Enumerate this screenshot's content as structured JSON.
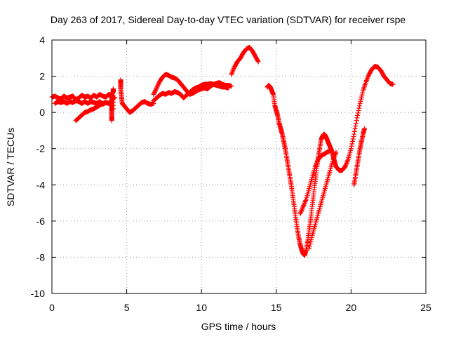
{
  "chart_data": {
    "type": "scatter",
    "title": "Day 263 of 2017, Sidereal Day-to-day VTEC variation (SDTVAR) for receiver rspe",
    "xlabel": "GPS time / hours",
    "ylabel": "SDTVAR / TECUs",
    "xlim": [
      0,
      25
    ],
    "ylim": [
      -10,
      4
    ],
    "xticks": [
      "0",
      "5",
      "10",
      "15",
      "20",
      "25"
    ],
    "yticks": [
      "4",
      "2",
      "0",
      "-2",
      "-4",
      "-6",
      "-8",
      "-10"
    ],
    "grid": true,
    "marker": "plus",
    "color": "#ff0000",
    "series": [
      {
        "x": [
          0.0,
          0.2,
          0.4,
          0.6,
          0.8,
          1.0,
          1.2,
          1.4,
          1.6,
          1.8,
          2.0,
          2.2,
          2.4,
          2.6,
          2.8,
          3.0,
          3.2,
          3.4,
          3.6,
          3.8,
          4.0,
          4.2
        ],
        "y": [
          0.85,
          0.9,
          0.8,
          0.75,
          0.9,
          0.8,
          0.85,
          0.9,
          0.7,
          0.8,
          0.95,
          0.85,
          0.9,
          0.8,
          0.95,
          0.85,
          1.0,
          0.9,
          0.85,
          1.0,
          0.9,
          0.8
        ]
      },
      {
        "x": [
          0.2,
          0.4,
          0.6,
          0.8,
          1.0,
          1.2,
          1.4,
          1.6,
          1.8,
          2.0,
          2.2,
          2.4,
          2.6,
          2.8,
          3.0,
          3.2,
          3.4,
          3.6,
          3.8,
          4.0
        ],
        "y": [
          0.5,
          0.6,
          0.55,
          0.6,
          0.5,
          0.6,
          0.55,
          0.65,
          0.6,
          0.5,
          0.6,
          0.5,
          0.6,
          0.55,
          0.5,
          0.6,
          0.45,
          0.55,
          0.5,
          0.55
        ]
      },
      {
        "x": [
          1.6,
          1.8,
          2.0,
          2.2,
          2.4,
          2.6,
          2.8,
          3.0,
          3.2,
          3.4,
          3.6,
          3.8
        ],
        "y": [
          -0.45,
          -0.3,
          -0.15,
          0.0,
          0.05,
          0.15,
          0.2,
          0.3,
          0.4,
          0.5,
          0.55,
          0.5
        ]
      },
      {
        "x": [
          4.0,
          4.0,
          4.0,
          4.0,
          4.0,
          4.0,
          4.0,
          4.1,
          4.1,
          4.1
        ],
        "y": [
          -0.45,
          -0.2,
          0.1,
          0.3,
          0.5,
          0.75,
          1.0,
          1.15,
          1.3,
          0.2
        ]
      },
      {
        "x": [
          4.6,
          4.6,
          4.6,
          4.65,
          4.7,
          4.8,
          5.0,
          5.2,
          5.4,
          5.6,
          5.8,
          6.0,
          6.2,
          6.4,
          6.6,
          6.8
        ],
        "y": [
          1.8,
          1.6,
          1.3,
          0.9,
          0.5,
          0.4,
          0.2,
          0.0,
          0.1,
          0.25,
          0.4,
          0.55,
          0.6,
          0.5,
          0.45,
          0.5
        ]
      },
      {
        "x": [
          6.8,
          7.0,
          7.2,
          7.4,
          7.6,
          7.8,
          8.0,
          8.2,
          8.4,
          8.6,
          8.8,
          9.0,
          9.2,
          9.4,
          9.6,
          9.8,
          10.0,
          10.2,
          10.4,
          10.6,
          10.8,
          11.0,
          11.2,
          11.4,
          11.6,
          11.8,
          12.0
        ],
        "y": [
          1.0,
          1.35,
          1.7,
          1.95,
          2.1,
          2.05,
          1.95,
          1.9,
          1.8,
          1.6,
          1.4,
          1.2,
          1.0,
          1.05,
          1.15,
          1.25,
          1.3,
          1.35,
          1.3,
          1.45,
          1.55,
          1.6,
          1.65,
          1.55,
          1.5,
          1.5,
          1.45
        ]
      },
      {
        "x": [
          6.8,
          7.0,
          7.2,
          7.4,
          7.6,
          7.8,
          8.0,
          8.2,
          8.4,
          8.6,
          8.8,
          9.0,
          9.2,
          9.4,
          9.6,
          9.8,
          10.0,
          10.2,
          10.4,
          10.6,
          10.8,
          11.0,
          11.2,
          11.4,
          11.6,
          11.8
        ],
        "y": [
          0.65,
          0.8,
          0.95,
          1.05,
          1.0,
          1.1,
          1.05,
          1.15,
          1.1,
          1.0,
          0.8,
          0.95,
          1.1,
          1.25,
          1.35,
          1.4,
          1.5,
          1.55,
          1.55,
          1.6,
          1.55,
          1.5,
          1.45,
          1.4,
          1.4,
          1.35
        ]
      },
      {
        "x": [
          12.0,
          12.2,
          12.4,
          12.6,
          12.8,
          13.0,
          13.2,
          13.4,
          13.6,
          13.8
        ],
        "y": [
          2.1,
          2.5,
          2.8,
          3.0,
          3.3,
          3.5,
          3.6,
          3.4,
          3.1,
          2.8
        ]
      },
      {
        "x": [
          14.4,
          14.5,
          14.6,
          14.7,
          14.8,
          14.9,
          15.0,
          15.1,
          15.2,
          15.3,
          15.4,
          15.5,
          15.6,
          15.7,
          15.8,
          15.9,
          16.0,
          16.1,
          16.2,
          16.3,
          16.4,
          16.5,
          16.6,
          16.7,
          16.8,
          16.9,
          17.0,
          17.1,
          17.2,
          17.3,
          17.4,
          17.5,
          17.6,
          17.7,
          17.8,
          17.9,
          18.0,
          18.1,
          18.2,
          18.3,
          18.4,
          18.5,
          18.6,
          18.7,
          18.8,
          18.9,
          19.0,
          19.2,
          19.4,
          19.6,
          19.8,
          20.0,
          20.2,
          20.4,
          20.6,
          20.8,
          21.0,
          21.2,
          21.4,
          21.6,
          21.8,
          22.0,
          22.2,
          22.4,
          22.6,
          22.8
        ],
        "y": [
          1.4,
          1.5,
          1.4,
          1.2,
          1.0,
          0.4,
          0.1,
          -0.2,
          -0.6,
          -0.9,
          -1.2,
          -1.6,
          -2.0,
          -2.5,
          -3.0,
          -3.5,
          -4.0,
          -4.6,
          -5.2,
          -5.8,
          -6.4,
          -6.9,
          -7.3,
          -7.6,
          -7.8,
          -7.9,
          -7.6,
          -7.1,
          -6.5,
          -5.9,
          -5.2,
          -4.5,
          -3.8,
          -3.1,
          -2.5,
          -2.0,
          -1.5,
          -1.3,
          -1.2,
          -1.3,
          -1.5,
          -1.7,
          -1.9,
          -2.1,
          -2.4,
          -2.7,
          -3.0,
          -3.2,
          -3.2,
          -3.0,
          -2.6,
          -2.0,
          -1.2,
          -0.3,
          0.5,
          1.2,
          1.7,
          2.1,
          2.4,
          2.55,
          2.5,
          2.3,
          2.0,
          1.8,
          1.6,
          1.55
        ]
      },
      {
        "x": [
          16.6,
          16.8,
          17.0,
          17.2,
          17.4,
          17.6,
          17.8,
          18.0,
          18.2,
          18.4,
          18.6
        ],
        "y": [
          -5.6,
          -5.2,
          -4.8,
          -4.2,
          -3.6,
          -3.0,
          -2.6,
          -2.4,
          -2.3,
          -2.2,
          -2.1
        ]
      },
      {
        "x": [
          17.2,
          17.4,
          17.6,
          17.8,
          18.0,
          18.2,
          18.4,
          18.6,
          18.8,
          19.0
        ],
        "y": [
          -7.5,
          -6.8,
          -6.2,
          -5.6,
          -5.0,
          -4.4,
          -3.8,
          -3.2,
          -2.6,
          -2.2
        ]
      },
      {
        "x": [
          20.2,
          20.3,
          20.4,
          20.5,
          20.6,
          20.7,
          20.8,
          20.9
        ],
        "y": [
          -4.0,
          -3.5,
          -3.0,
          -2.5,
          -2.0,
          -1.6,
          -1.2,
          -0.9
        ]
      }
    ]
  }
}
